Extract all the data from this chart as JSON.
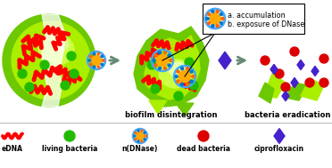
{
  "fig_width": 3.72,
  "fig_height": 1.89,
  "dpi": 100,
  "bg_color": "#ffffff",
  "biofilm_color_outer": "#6cc800",
  "biofilm_color_inner": "#aaee00",
  "biofilm_color_light": "#ccff44",
  "biofilm_color_lightest": "#e8ffaa",
  "edna_color": "#ff0000",
  "living_bacteria_color": "#22bb00",
  "dead_bacteria_color": "#dd0000",
  "ndnase_outer": "#44aaff",
  "ndnase_inner": "#ffaa00",
  "ndnase_dots_orange": "#ff6600",
  "ndnase_dots_blue": "#0077cc",
  "ciprofloxacin_color": "#4422cc",
  "arrow_color": "#668877",
  "text_color": "#000000",
  "label_biofilm": "biofilm disintegration",
  "label_eradication": "bacteria eradication",
  "legend_edna": "eDNA",
  "legend_living": "living bacteria",
  "legend_ndnase": "n(DNase)",
  "legend_dead": "dead bacteria",
  "legend_cipro": "ciprofloxacin",
  "callout_line1": "a. accumulation",
  "callout_line2": "b. exposure of DNase"
}
